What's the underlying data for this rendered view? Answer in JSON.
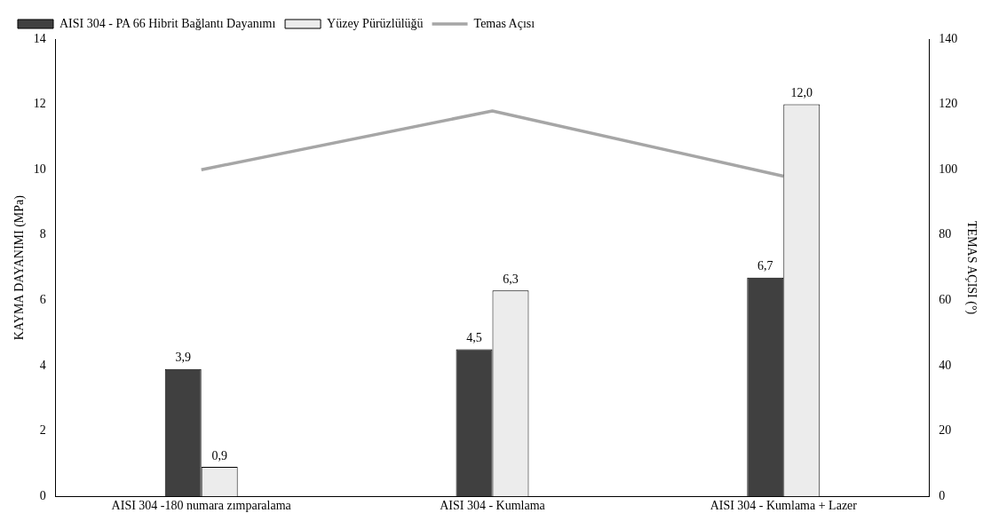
{
  "chart_data": {
    "type": "bar",
    "ylabel": "KAYMA DAYANIMI (MPa)",
    "y2label": "TEMAS AÇISI (°)",
    "categories": [
      "AISI 304 -180 numara zımparalama",
      "AISI 304 - Kumlama",
      "AISI 304 - Kumlama + Lazer"
    ],
    "series": [
      {
        "name": "AISI 304 - PA 66 Hibrit Bağlantı Dayanımı",
        "color": "#404040",
        "values": [
          3.9,
          4.5,
          6.7
        ],
        "value_labels": [
          "3,9",
          "4,5",
          "6,7"
        ]
      },
      {
        "name": "Yüzey Pürüzlülüğü",
        "color": "#ececec",
        "values": [
          0.9,
          6.3,
          12.0
        ],
        "value_labels": [
          "0,9",
          "6,3",
          "12,0"
        ]
      },
      {
        "name": "Temas Açısı",
        "type": "line",
        "axis": "y2",
        "color": "#a6a6a6",
        "values": [
          100,
          118,
          98
        ]
      }
    ],
    "ylim": [
      0,
      14
    ],
    "yticks": [
      0,
      2,
      4,
      6,
      8,
      10,
      12,
      14
    ],
    "y2lim": [
      0,
      140
    ],
    "y2ticks": [
      0,
      20,
      40,
      60,
      80,
      100,
      120,
      140
    ],
    "grid": false,
    "legend": "top left",
    "marker": "none"
  }
}
